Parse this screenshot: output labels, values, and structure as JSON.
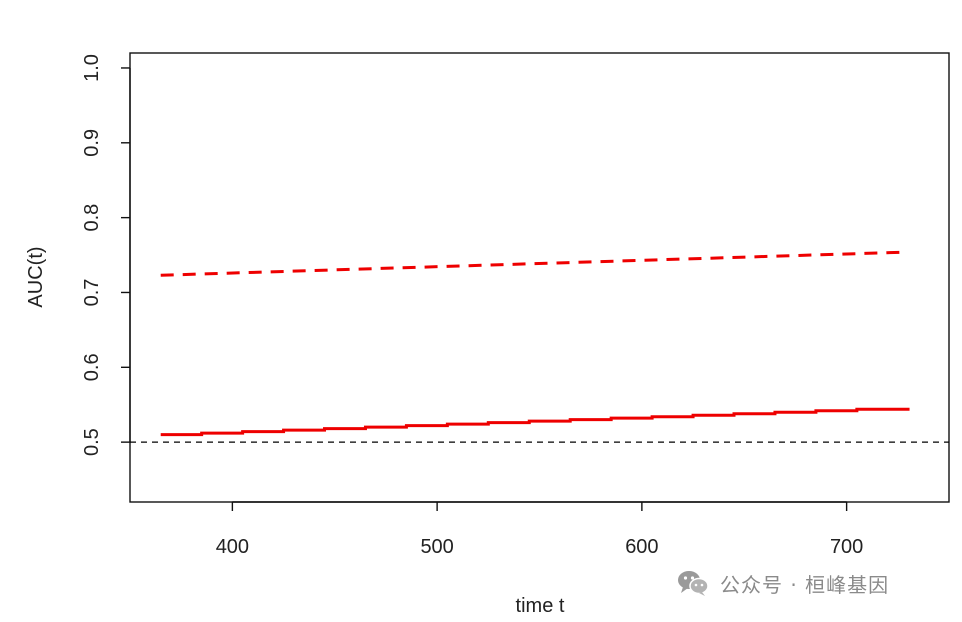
{
  "chart_data": {
    "type": "line",
    "title": "",
    "xlabel": "time t",
    "ylabel": "AUC(t)",
    "xlim": [
      350,
      750
    ],
    "ylim": [
      0.42,
      1.02
    ],
    "xticks": [
      400,
      500,
      600,
      700
    ],
    "yticks": [
      0.5,
      0.6,
      0.7,
      0.8,
      0.9,
      1.0
    ],
    "xtick_labels": [
      "400",
      "500",
      "600",
      "700"
    ],
    "ytick_labels": [
      "0.5",
      "0.6",
      "0.7",
      "0.8",
      "0.9",
      "1.0"
    ],
    "grid": false,
    "series": [
      {
        "line_style": "dashed",
        "color": "#ee0000",
        "x": [
          365,
          730
        ],
        "y": [
          0.723,
          0.754
        ]
      },
      {
        "line_style": "solid-step",
        "color": "#ee0000",
        "x": [
          365,
          385,
          405,
          425,
          445,
          465,
          485,
          505,
          525,
          545,
          565,
          585,
          605,
          625,
          645,
          665,
          685,
          705,
          730
        ],
        "y": [
          0.51,
          0.512,
          0.514,
          0.516,
          0.518,
          0.52,
          0.522,
          0.524,
          0.526,
          0.528,
          0.53,
          0.532,
          0.534,
          0.536,
          0.538,
          0.54,
          0.542,
          0.544,
          0.546
        ]
      }
    ],
    "reference_line": {
      "y": 0.5,
      "line_style": "dashed",
      "color": "#000000"
    }
  },
  "watermark": {
    "text": "公众号 · 桓峰基因",
    "icon": "wechat-icon"
  }
}
